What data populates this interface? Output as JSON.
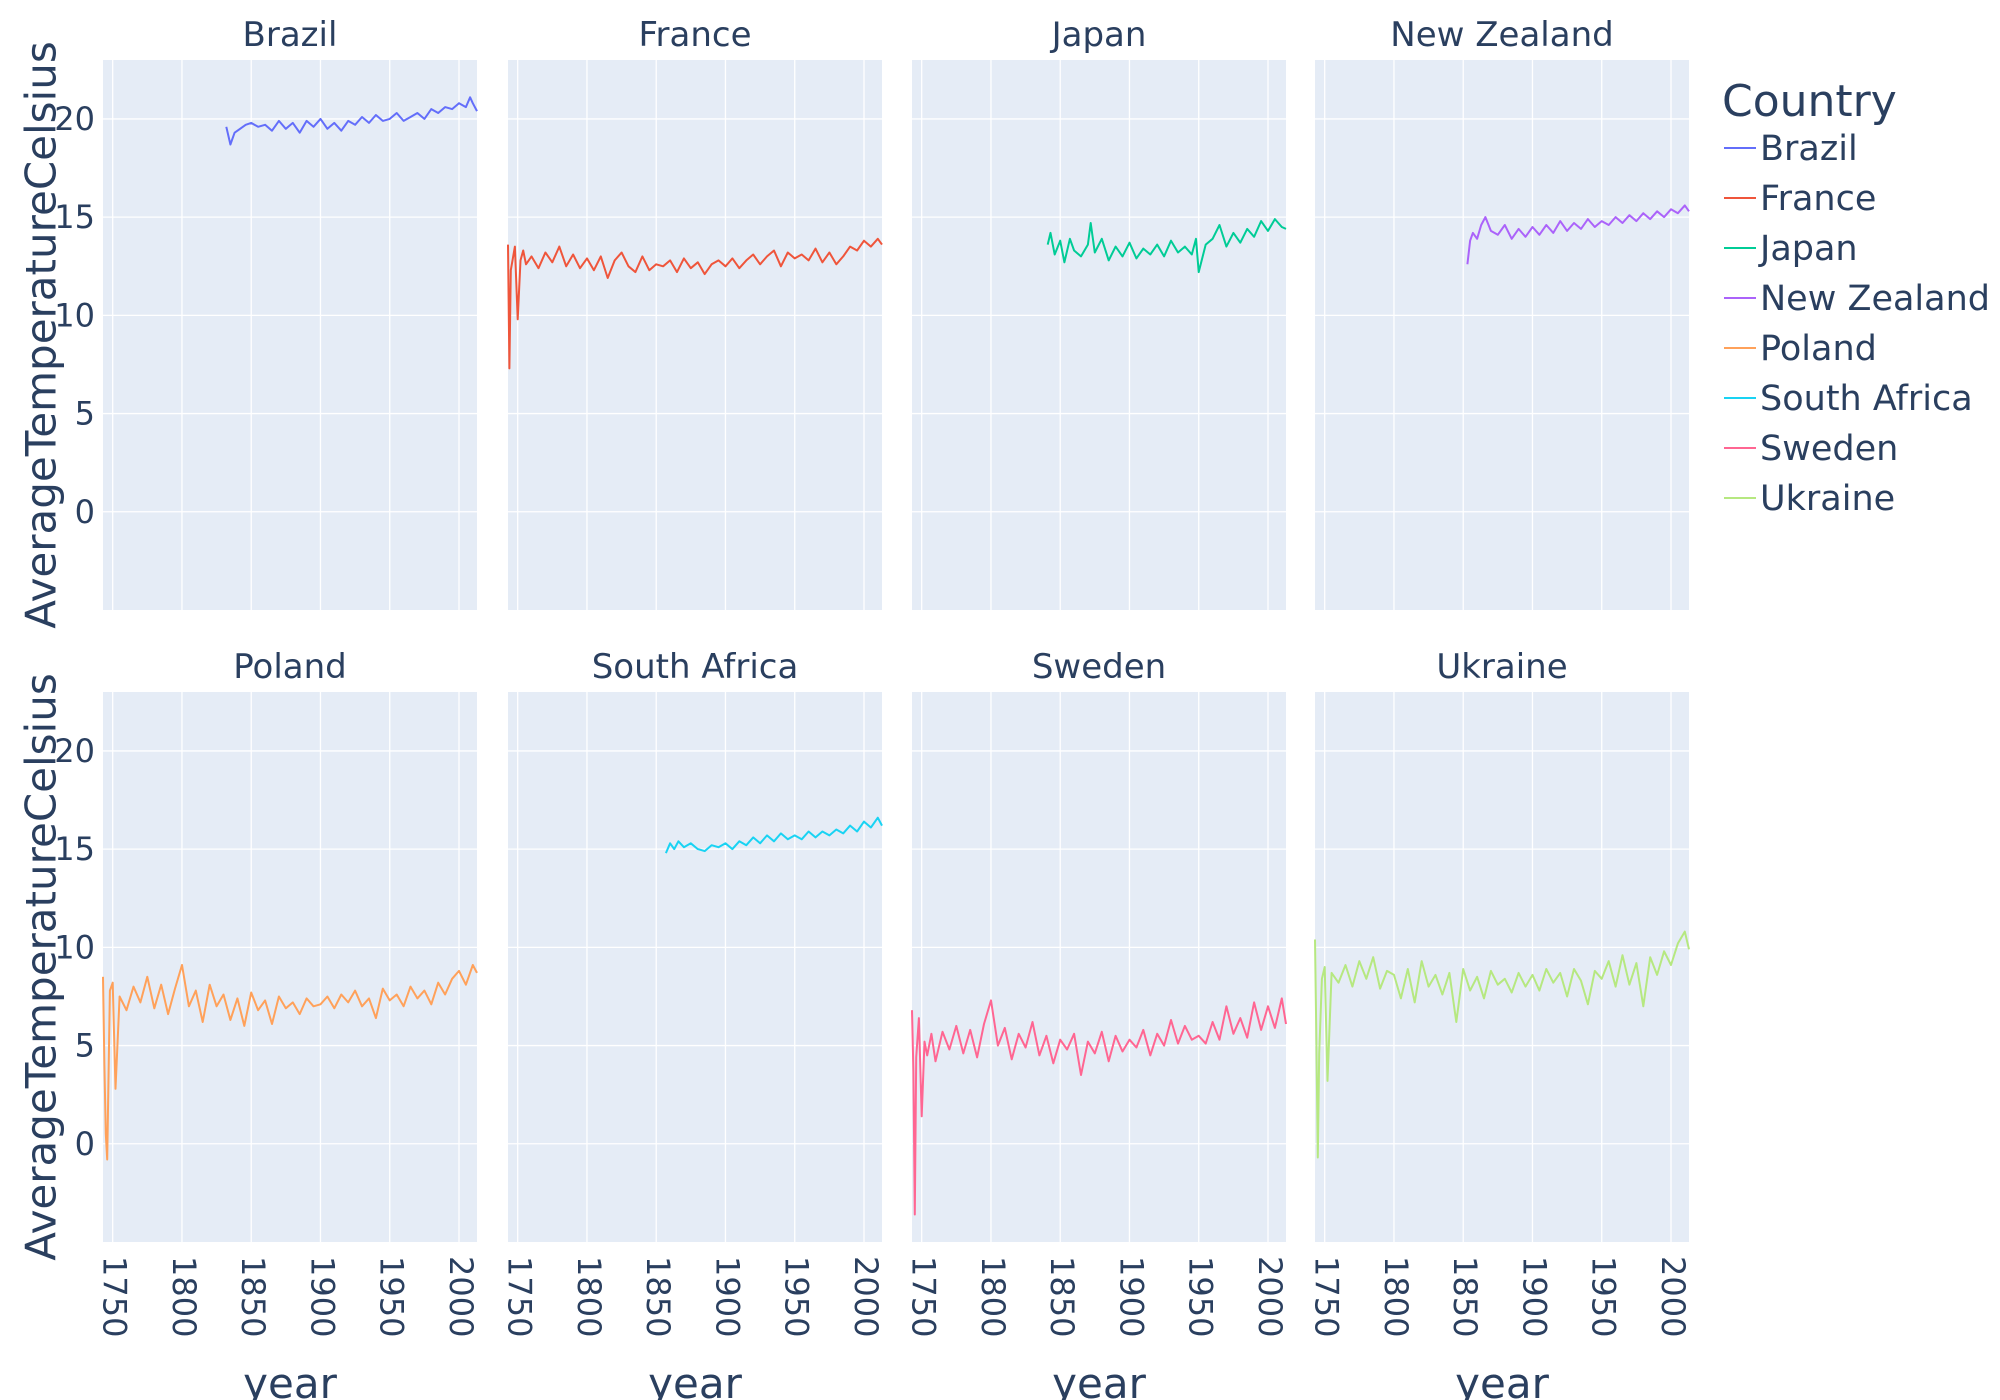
{
  "chart_data": {
    "type": "line",
    "xlabel": "year",
    "ylabel": "AverageTemperatureCelsius",
    "xlim": [
      1743,
      2013
    ],
    "ylim": [
      -5,
      23
    ],
    "x_ticks": [
      1750,
      1800,
      1850,
      1900,
      1950,
      2000
    ],
    "y_ticks": [
      0,
      5,
      10,
      15,
      20
    ],
    "grid": true,
    "legend": {
      "title": "Country",
      "placement": "right"
    },
    "series": [
      {
        "name": "Brazil",
        "color": "#636efa",
        "x": [
          1832,
          1835,
          1838,
          1842,
          1846,
          1850,
          1855,
          1860,
          1865,
          1870,
          1875,
          1880,
          1885,
          1890,
          1895,
          1900,
          1905,
          1910,
          1915,
          1920,
          1925,
          1930,
          1935,
          1940,
          1945,
          1950,
          1955,
          1960,
          1965,
          1970,
          1975,
          1980,
          1985,
          1990,
          1995,
          2000,
          2005,
          2008,
          2010,
          2013
        ],
        "y": [
          19.6,
          18.7,
          19.3,
          19.5,
          19.7,
          19.8,
          19.6,
          19.7,
          19.4,
          19.9,
          19.5,
          19.8,
          19.3,
          19.9,
          19.6,
          20.0,
          19.5,
          19.8,
          19.4,
          19.9,
          19.7,
          20.1,
          19.8,
          20.2,
          19.9,
          20.0,
          20.3,
          19.9,
          20.1,
          20.3,
          20.0,
          20.5,
          20.3,
          20.6,
          20.5,
          20.8,
          20.6,
          21.1,
          20.8,
          20.4
        ]
      },
      {
        "name": "France",
        "color": "#ef553b",
        "x": [
          1743,
          1744,
          1745,
          1748,
          1750,
          1752,
          1754,
          1756,
          1760,
          1765,
          1770,
          1775,
          1780,
          1785,
          1790,
          1795,
          1800,
          1805,
          1810,
          1815,
          1820,
          1825,
          1830,
          1835,
          1840,
          1845,
          1850,
          1855,
          1860,
          1865,
          1870,
          1875,
          1880,
          1885,
          1890,
          1895,
          1900,
          1905,
          1910,
          1915,
          1920,
          1925,
          1930,
          1935,
          1940,
          1945,
          1950,
          1955,
          1960,
          1965,
          1970,
          1975,
          1980,
          1985,
          1990,
          1995,
          2000,
          2005,
          2010,
          2013
        ],
        "y": [
          13.6,
          7.3,
          12.3,
          13.5,
          9.8,
          12.8,
          13.3,
          12.6,
          13.0,
          12.4,
          13.2,
          12.7,
          13.5,
          12.5,
          13.1,
          12.4,
          12.9,
          12.3,
          13.0,
          11.9,
          12.8,
          13.2,
          12.5,
          12.2,
          13.0,
          12.3,
          12.6,
          12.5,
          12.8,
          12.2,
          12.9,
          12.4,
          12.7,
          12.1,
          12.6,
          12.8,
          12.5,
          12.9,
          12.4,
          12.8,
          13.1,
          12.6,
          13.0,
          13.3,
          12.5,
          13.2,
          12.9,
          13.1,
          12.8,
          13.4,
          12.7,
          13.2,
          12.6,
          13.0,
          13.5,
          13.3,
          13.8,
          13.5,
          13.9,
          13.6
        ]
      },
      {
        "name": "Japan",
        "color": "#00cc96",
        "x": [
          1841,
          1843,
          1846,
          1850,
          1853,
          1857,
          1860,
          1865,
          1870,
          1872,
          1875,
          1880,
          1885,
          1890,
          1895,
          1900,
          1905,
          1910,
          1915,
          1920,
          1925,
          1930,
          1935,
          1940,
          1945,
          1948,
          1950,
          1955,
          1960,
          1965,
          1970,
          1975,
          1980,
          1985,
          1990,
          1995,
          2000,
          2005,
          2010,
          2013
        ],
        "y": [
          13.6,
          14.2,
          13.1,
          13.8,
          12.7,
          13.9,
          13.3,
          13.0,
          13.6,
          14.7,
          13.2,
          13.9,
          12.8,
          13.5,
          13.0,
          13.7,
          12.9,
          13.4,
          13.1,
          13.6,
          13.0,
          13.8,
          13.2,
          13.5,
          13.1,
          13.9,
          12.2,
          13.6,
          13.9,
          14.6,
          13.5,
          14.2,
          13.7,
          14.4,
          14.0,
          14.8,
          14.3,
          14.9,
          14.5,
          14.4
        ]
      },
      {
        "name": "New Zealand",
        "color": "#ab63fa",
        "x": [
          1853,
          1855,
          1857,
          1860,
          1863,
          1866,
          1870,
          1875,
          1880,
          1885,
          1890,
          1895,
          1900,
          1905,
          1910,
          1915,
          1920,
          1925,
          1930,
          1935,
          1940,
          1945,
          1950,
          1955,
          1960,
          1965,
          1970,
          1975,
          1980,
          1985,
          1990,
          1995,
          2000,
          2005,
          2010,
          2013
        ],
        "y": [
          12.6,
          13.8,
          14.2,
          13.9,
          14.6,
          15.0,
          14.3,
          14.1,
          14.6,
          13.9,
          14.4,
          14.0,
          14.5,
          14.1,
          14.6,
          14.2,
          14.8,
          14.3,
          14.7,
          14.4,
          14.9,
          14.5,
          14.8,
          14.6,
          15.0,
          14.7,
          15.1,
          14.8,
          15.2,
          14.9,
          15.3,
          15.0,
          15.4,
          15.2,
          15.6,
          15.3
        ]
      },
      {
        "name": "Poland",
        "color": "#ffa15a",
        "x": [
          1743,
          1744,
          1745,
          1746,
          1748,
          1750,
          1752,
          1755,
          1760,
          1765,
          1770,
          1775,
          1780,
          1785,
          1790,
          1795,
          1800,
          1805,
          1810,
          1815,
          1820,
          1825,
          1830,
          1835,
          1840,
          1845,
          1850,
          1855,
          1860,
          1865,
          1870,
          1875,
          1880,
          1885,
          1890,
          1895,
          1900,
          1905,
          1910,
          1915,
          1920,
          1925,
          1930,
          1935,
          1940,
          1945,
          1950,
          1955,
          1960,
          1965,
          1970,
          1975,
          1980,
          1985,
          1990,
          1995,
          2000,
          2005,
          2010,
          2013
        ],
        "y": [
          8.5,
          4.0,
          0.5,
          -0.8,
          7.8,
          8.2,
          2.8,
          7.5,
          6.8,
          8.0,
          7.2,
          8.5,
          6.9,
          8.1,
          6.6,
          7.9,
          9.1,
          7.0,
          7.8,
          6.2,
          8.1,
          7.0,
          7.6,
          6.3,
          7.4,
          6.0,
          7.7,
          6.8,
          7.3,
          6.1,
          7.5,
          6.9,
          7.2,
          6.6,
          7.4,
          7.0,
          7.1,
          7.5,
          6.9,
          7.6,
          7.2,
          7.8,
          7.0,
          7.4,
          6.4,
          7.9,
          7.3,
          7.6,
          7.0,
          8.0,
          7.4,
          7.8,
          7.1,
          8.2,
          7.6,
          8.4,
          8.8,
          8.1,
          9.1,
          8.7
        ]
      },
      {
        "name": "South Africa",
        "color": "#19d3f3",
        "x": [
          1857,
          1860,
          1863,
          1866,
          1870,
          1875,
          1880,
          1885,
          1890,
          1895,
          1900,
          1905,
          1910,
          1915,
          1920,
          1925,
          1930,
          1935,
          1940,
          1945,
          1950,
          1955,
          1960,
          1965,
          1970,
          1975,
          1980,
          1985,
          1990,
          1995,
          2000,
          2005,
          2010,
          2013
        ],
        "y": [
          14.8,
          15.3,
          15.0,
          15.4,
          15.1,
          15.3,
          15.0,
          14.9,
          15.2,
          15.1,
          15.3,
          15.0,
          15.4,
          15.2,
          15.6,
          15.3,
          15.7,
          15.4,
          15.8,
          15.5,
          15.7,
          15.5,
          15.9,
          15.6,
          15.9,
          15.7,
          16.0,
          15.8,
          16.2,
          15.9,
          16.4,
          16.1,
          16.6,
          16.2
        ]
      },
      {
        "name": "Sweden",
        "color": "#ff6692",
        "x": [
          1743,
          1744,
          1745,
          1746,
          1748,
          1750,
          1752,
          1754,
          1757,
          1760,
          1765,
          1770,
          1775,
          1780,
          1785,
          1790,
          1795,
          1800,
          1805,
          1810,
          1815,
          1820,
          1825,
          1830,
          1835,
          1840,
          1845,
          1850,
          1855,
          1860,
          1865,
          1870,
          1875,
          1880,
          1885,
          1890,
          1895,
          1900,
          1905,
          1910,
          1915,
          1920,
          1925,
          1930,
          1935,
          1940,
          1945,
          1950,
          1955,
          1960,
          1965,
          1970,
          1975,
          1980,
          1985,
          1990,
          1995,
          2000,
          2005,
          2010,
          2013
        ],
        "y": [
          6.8,
          3.7,
          -3.6,
          4.4,
          6.4,
          1.4,
          5.2,
          4.5,
          5.6,
          4.2,
          5.7,
          4.8,
          6.0,
          4.6,
          5.8,
          4.4,
          6.1,
          7.3,
          5.0,
          5.9,
          4.3,
          5.6,
          4.9,
          6.2,
          4.5,
          5.5,
          4.1,
          5.3,
          4.8,
          5.6,
          3.5,
          5.2,
          4.6,
          5.7,
          4.2,
          5.5,
          4.7,
          5.3,
          4.9,
          5.8,
          4.5,
          5.6,
          5.0,
          6.3,
          5.1,
          6.0,
          5.3,
          5.5,
          5.1,
          6.2,
          5.3,
          7.0,
          5.6,
          6.4,
          5.4,
          7.2,
          5.8,
          7.0,
          5.9,
          7.4,
          6.1
        ]
      },
      {
        "name": "Ukraine",
        "color": "#b6e880",
        "x": [
          1743,
          1744,
          1745,
          1746,
          1748,
          1750,
          1752,
          1755,
          1760,
          1765,
          1770,
          1775,
          1780,
          1785,
          1790,
          1795,
          1800,
          1805,
          1810,
          1815,
          1820,
          1825,
          1830,
          1835,
          1840,
          1845,
          1850,
          1855,
          1860,
          1865,
          1870,
          1875,
          1880,
          1885,
          1890,
          1895,
          1900,
          1905,
          1910,
          1915,
          1920,
          1925,
          1930,
          1935,
          1940,
          1945,
          1950,
          1955,
          1960,
          1965,
          1970,
          1975,
          1980,
          1985,
          1990,
          1995,
          2000,
          2005,
          2010,
          2013
        ],
        "y": [
          10.4,
          5.2,
          -0.7,
          4.6,
          8.4,
          9.0,
          3.2,
          8.7,
          8.2,
          9.1,
          8.0,
          9.3,
          8.4,
          9.5,
          7.9,
          8.8,
          8.6,
          7.4,
          8.9,
          7.2,
          9.3,
          8.0,
          8.6,
          7.6,
          8.7,
          6.2,
          8.9,
          7.8,
          8.5,
          7.4,
          8.8,
          8.1,
          8.4,
          7.7,
          8.7,
          8.0,
          8.6,
          7.8,
          8.9,
          8.2,
          8.7,
          7.5,
          8.9,
          8.3,
          7.1,
          8.8,
          8.4,
          9.3,
          8.0,
          9.6,
          8.1,
          9.2,
          7.0,
          9.5,
          8.6,
          9.8,
          9.1,
          10.2,
          10.8,
          9.9
        ]
      }
    ]
  }
}
